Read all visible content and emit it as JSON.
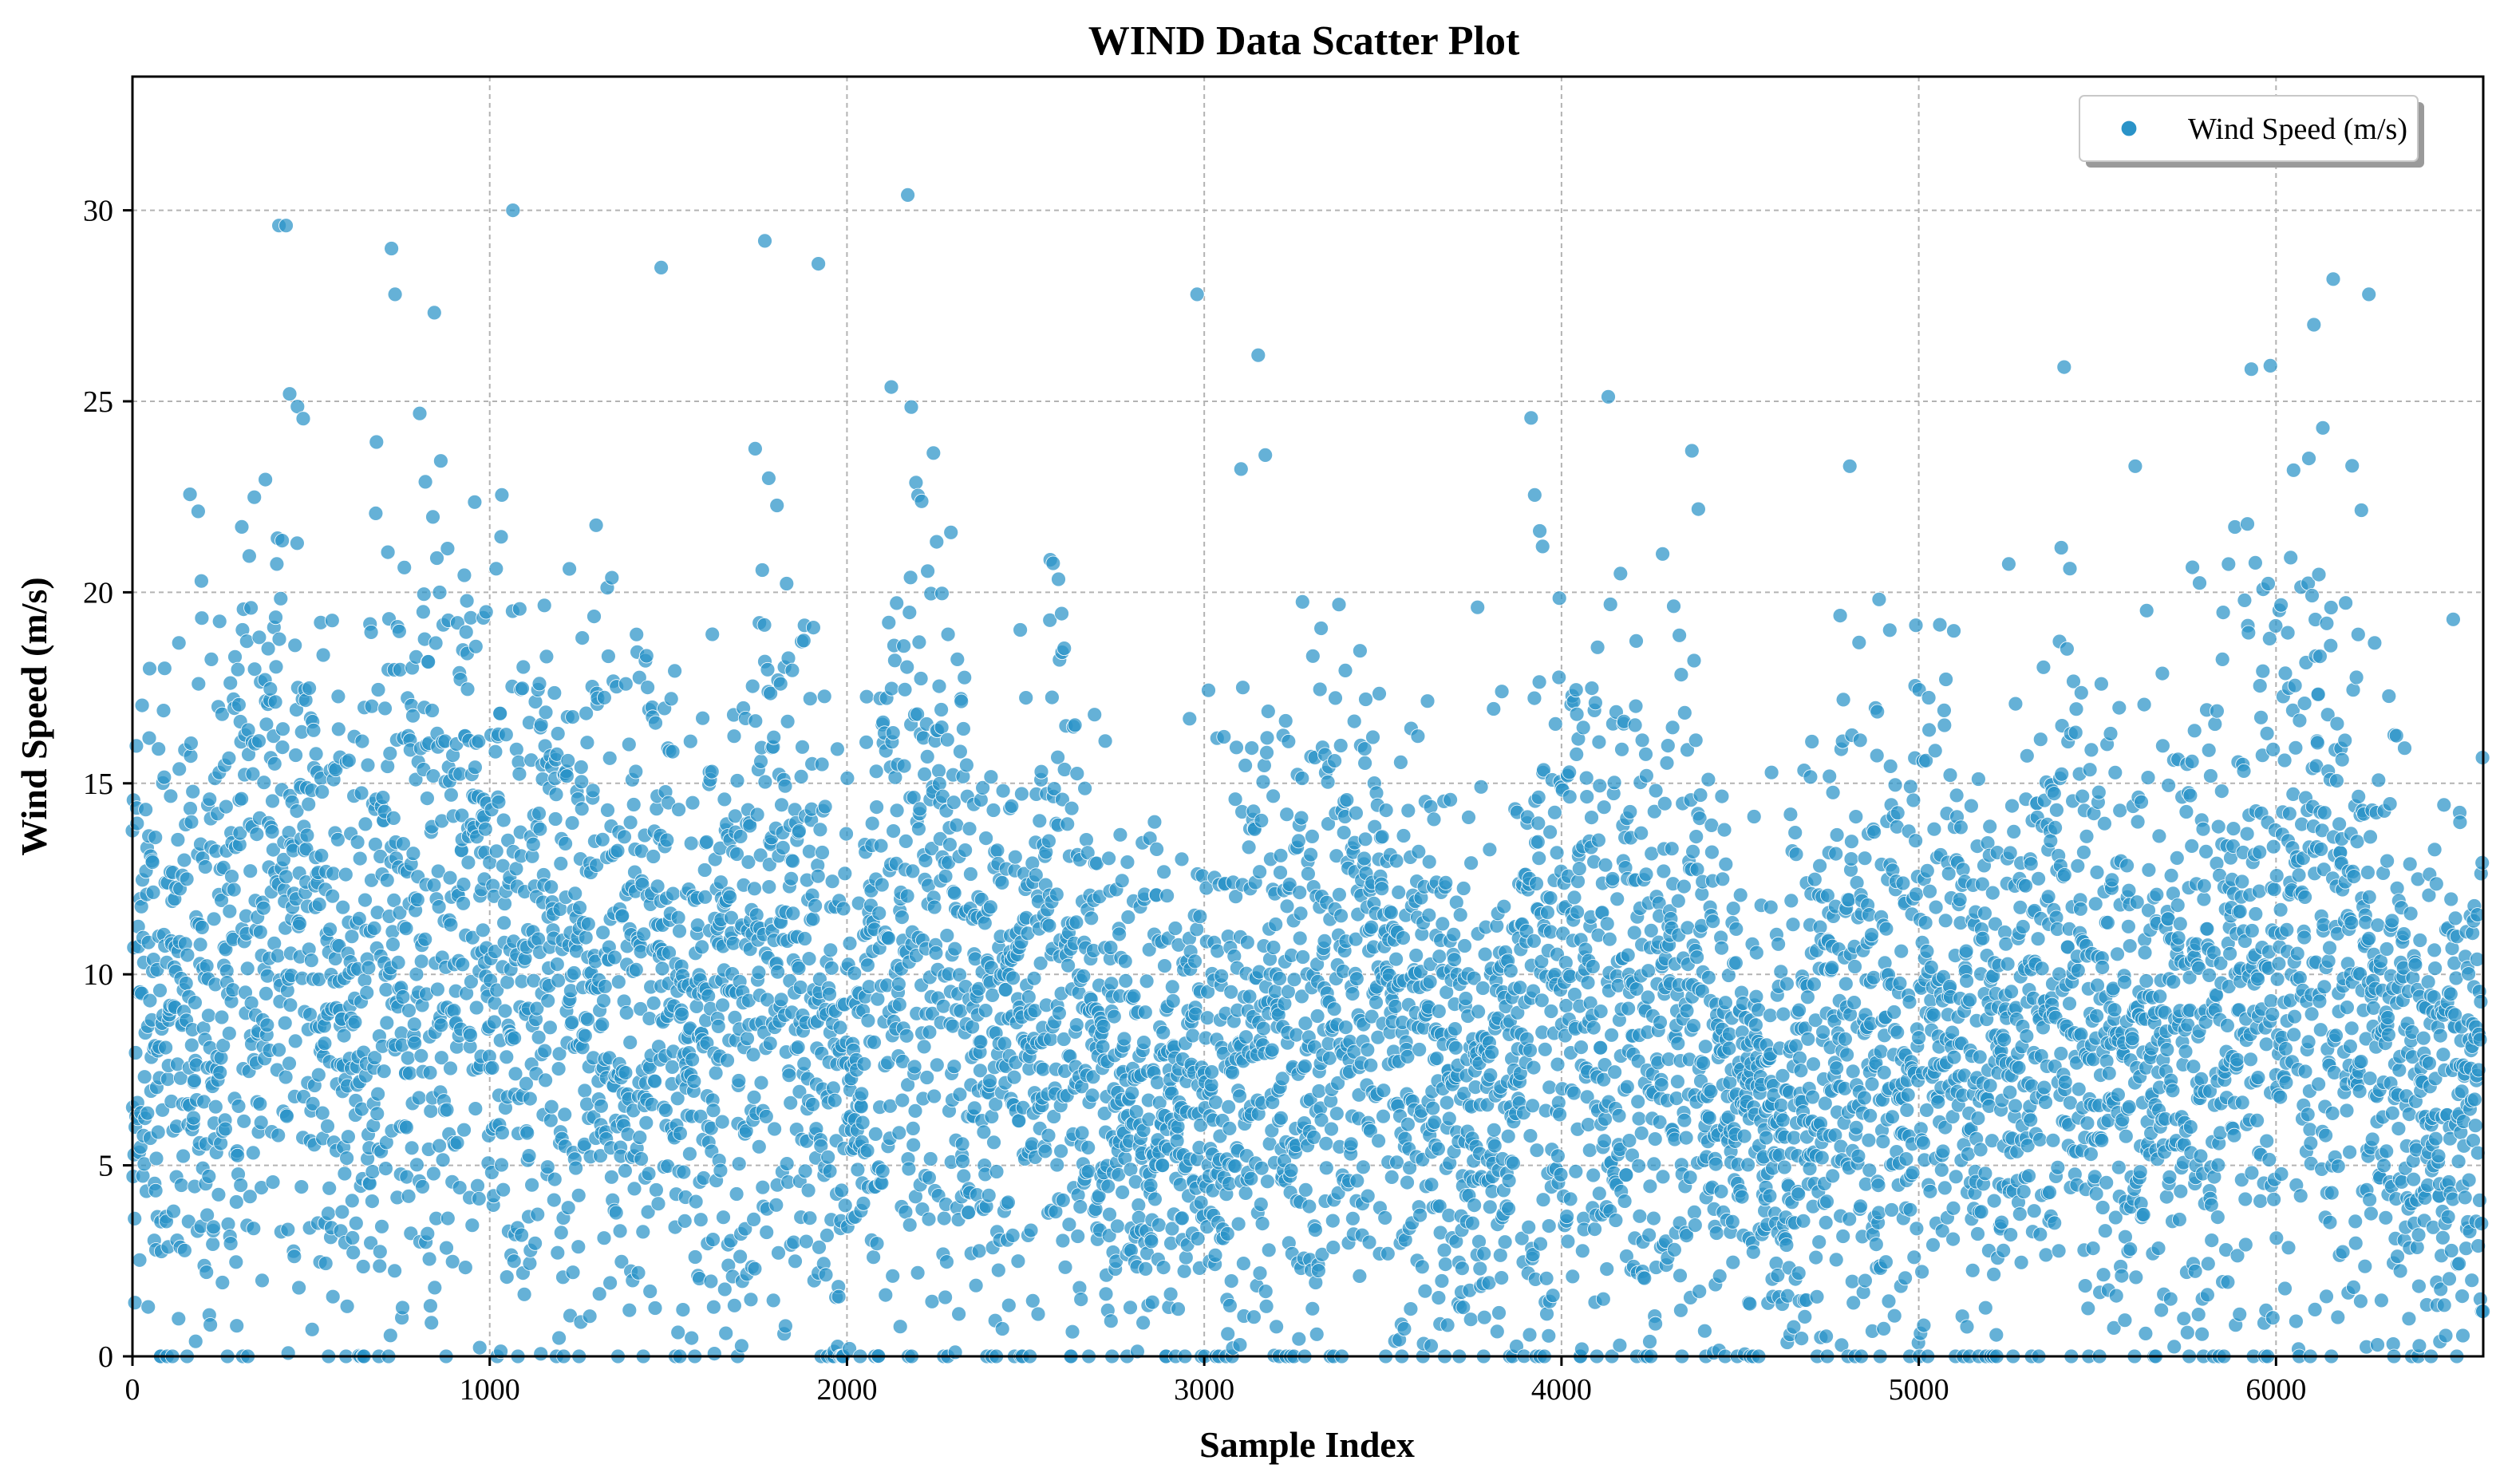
{
  "chart_data": {
    "type": "scatter",
    "title": "WIND Data Scatter Plot",
    "xlabel": "Sample Index",
    "ylabel": "Wind Speed (m/s)",
    "xlim": [
      0,
      6580
    ],
    "ylim": [
      0,
      33.5
    ],
    "xticks": [
      0,
      1000,
      2000,
      3000,
      4000,
      5000,
      6000
    ],
    "yticks": [
      0,
      5,
      10,
      15,
      20,
      25,
      30
    ],
    "grid": true,
    "legend_position": "top-right",
    "series": [
      {
        "name": "Wind Speed (m/s)",
        "color": "#2a93c8",
        "n_points": 6580,
        "mean": 9.2,
        "min": 0.0,
        "max": 30.4,
        "segment_means": [
          [
            0,
            9.5
          ],
          [
            200,
            8.5
          ],
          [
            400,
            12.5
          ],
          [
            600,
            8.5
          ],
          [
            800,
            11.5
          ],
          [
            1000,
            10.5
          ],
          [
            1200,
            9.5
          ],
          [
            1400,
            9.0
          ],
          [
            1600,
            9.0
          ],
          [
            1800,
            11.0
          ],
          [
            2000,
            7.0
          ],
          [
            2200,
            12.0
          ],
          [
            2400,
            7.5
          ],
          [
            2600,
            9.5
          ],
          [
            2800,
            6.0
          ],
          [
            3000,
            6.5
          ],
          [
            3200,
            8.5
          ],
          [
            3400,
            9.0
          ],
          [
            3600,
            8.0
          ],
          [
            3800,
            6.5
          ],
          [
            4000,
            10.0
          ],
          [
            4200,
            9.5
          ],
          [
            4400,
            8.5
          ],
          [
            4600,
            5.5
          ],
          [
            4800,
            8.5
          ],
          [
            5000,
            9.5
          ],
          [
            5200,
            7.0
          ],
          [
            5400,
            9.5
          ],
          [
            5600,
            7.5
          ],
          [
            5800,
            8.5
          ],
          [
            6000,
            11.0
          ],
          [
            6200,
            10.0
          ],
          [
            6400,
            6.5
          ],
          [
            6580,
            7.5
          ]
        ],
        "peaks": [
          {
            "x": 410,
            "y": 29.6
          },
          {
            "x": 430,
            "y": 29.6
          },
          {
            "x": 725,
            "y": 29.0
          },
          {
            "x": 735,
            "y": 27.8
          },
          {
            "x": 1480,
            "y": 28.5
          },
          {
            "x": 1770,
            "y": 29.2
          },
          {
            "x": 1920,
            "y": 28.6
          },
          {
            "x": 2170,
            "y": 30.4
          },
          {
            "x": 2980,
            "y": 27.8
          },
          {
            "x": 6160,
            "y": 28.2
          },
          {
            "x": 6260,
            "y": 27.8
          }
        ]
      }
    ]
  }
}
